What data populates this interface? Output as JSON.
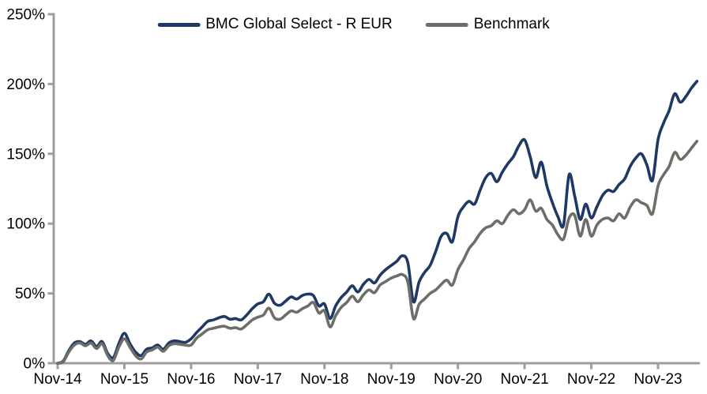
{
  "chart_data": {
    "type": "line",
    "title": "",
    "xlabel": "",
    "ylabel": "",
    "x_unit": "months since Nov-2014 (index 0 = Nov-14, one value per month, last point = Jun-24)",
    "x_tick_labels": [
      "Nov-14",
      "Nov-15",
      "Nov-16",
      "Nov-17",
      "Nov-18",
      "Nov-19",
      "Nov-20",
      "Nov-21",
      "Nov-22",
      "Nov-23"
    ],
    "x_tick_month_indices": [
      0,
      12,
      24,
      36,
      48,
      60,
      72,
      84,
      96,
      108
    ],
    "y_ticks": [
      0,
      50,
      100,
      150,
      200,
      250
    ],
    "y_tick_suffix": "%",
    "ylim": [
      0,
      250
    ],
    "grid": false,
    "legend_position": "top-center",
    "axis_color": "#9E9E9E",
    "text_color": "#000000",
    "series": [
      {
        "name": "BMC Global Select - R EUR",
        "color": "#1F3864",
        "values": [
          0,
          1.5,
          9,
          14.5,
          15.5,
          13.5,
          16,
          12,
          15.5,
          7,
          4,
          14,
          21.5,
          14,
          8,
          5.5,
          10,
          11,
          13,
          10,
          14.5,
          16,
          15.5,
          15,
          17.5,
          22,
          26,
          30,
          31,
          32.5,
          33.5,
          31.5,
          32,
          31,
          34.5,
          39,
          42.5,
          44,
          49.5,
          43,
          41.5,
          44.5,
          47.5,
          46,
          48.5,
          49.5,
          48.5,
          41,
          42.5,
          32,
          41,
          47,
          51,
          55.5,
          51,
          56.5,
          60,
          57.5,
          63,
          67,
          70,
          73,
          77,
          72,
          44,
          58,
          65,
          70,
          80,
          91,
          93,
          87,
          105,
          112,
          116,
          114,
          124,
          133,
          136,
          130,
          137,
          143,
          148,
          156,
          160,
          148,
          133,
          144,
          127,
          115,
          105,
          99,
          135,
          120,
          103,
          114,
          104,
          112,
          120,
          124,
          123,
          128,
          132,
          141,
          147,
          150,
          142,
          131,
          160,
          172,
          181,
          193,
          187,
          191,
          197,
          202
        ]
      },
      {
        "name": "Benchmark",
        "color": "#6E6E69",
        "values": [
          0,
          1,
          8,
          13,
          14.5,
          12.5,
          14.5,
          10.5,
          14,
          5.5,
          2,
          11.5,
          17.5,
          11.5,
          5.5,
          3,
          8,
          9.5,
          11.5,
          8.5,
          12.5,
          14,
          13.5,
          13,
          13,
          18,
          21,
          24,
          25,
          26,
          26.5,
          25,
          25.5,
          24.5,
          27.5,
          31,
          33,
          34.5,
          39.5,
          32.5,
          31.5,
          34.5,
          37.5,
          36.5,
          39,
          41,
          43.5,
          36,
          37.5,
          26,
          34,
          40,
          43.5,
          48,
          44,
          49,
          52.5,
          50.5,
          56,
          58.5,
          61,
          62.5,
          63.5,
          58,
          32,
          42,
          46,
          50,
          52.5,
          56.5,
          59.5,
          56,
          67,
          74,
          82,
          87,
          93,
          97,
          98.5,
          102,
          100,
          106,
          110,
          107,
          110,
          117,
          109,
          111,
          103,
          99,
          92,
          89,
          104,
          106,
          91,
          103,
          91,
          99,
          103,
          104,
          102,
          107,
          104,
          112,
          117,
          115,
          113,
          107,
          127,
          135,
          141,
          151,
          146,
          149,
          154,
          159
        ]
      }
    ]
  }
}
